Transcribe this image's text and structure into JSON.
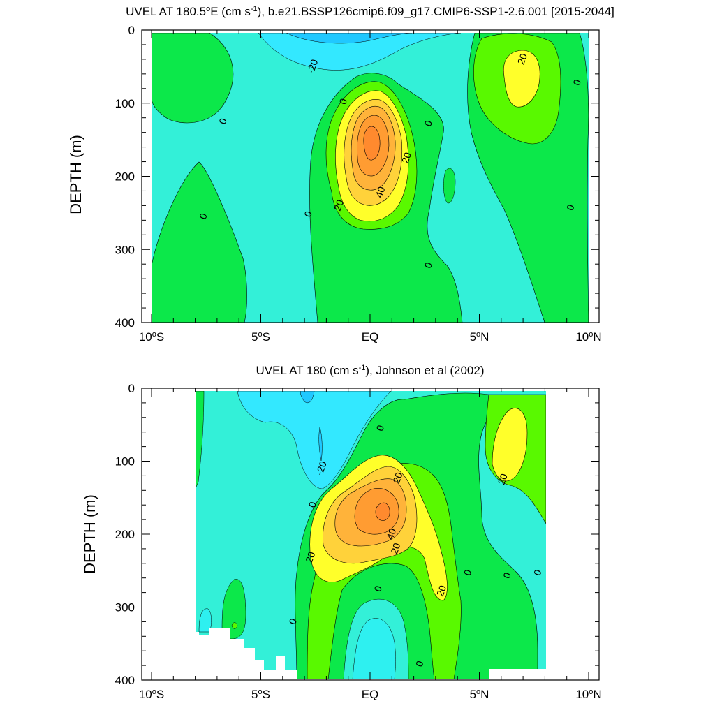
{
  "chart_data": [
    {
      "type": "heatmap",
      "title_main": "UVEL AT 180.5",
      "title_sup": "o",
      "title_rest": "E (cm s",
      "title_exp": "-1",
      "title_tail": "), b.e21.BSSP126cmip6.f09_g17.CMIP6-SSP1-2.6.001 [2015-2044]",
      "ylabel": "DEPTH (m)",
      "xlabel": "",
      "xlim": [
        -10,
        10
      ],
      "ylim": [
        400,
        0
      ],
      "x_ticks": [
        {
          "value": -10,
          "num": "10",
          "deg": "o",
          "hem": "S"
        },
        {
          "value": -5,
          "num": "5",
          "deg": "o",
          "hem": "S"
        },
        {
          "value": 0,
          "num": "EQ",
          "deg": "",
          "hem": ""
        },
        {
          "value": 5,
          "num": "5",
          "deg": "o",
          "hem": "N"
        },
        {
          "value": 10,
          "num": "10",
          "deg": "o",
          "hem": "N"
        }
      ],
      "y_ticks": [
        {
          "value": 0,
          "label": "0"
        },
        {
          "value": 100,
          "label": "100"
        },
        {
          "value": 200,
          "label": "200"
        },
        {
          "value": 300,
          "label": "300"
        },
        {
          "value": 400,
          "label": "400"
        }
      ],
      "data_extent": {
        "x": [
          -9.8,
          9.8
        ],
        "y": [
          5,
          400
        ]
      },
      "background_color": "#33f0d8",
      "contour_labels": [
        {
          "x": -2.6,
          "y": 50,
          "text": "-20"
        },
        {
          "x": -1.2,
          "y": 98,
          "text": "0"
        },
        {
          "x": -6.7,
          "y": 125,
          "text": "0"
        },
        {
          "x": 2.7,
          "y": 128,
          "text": "0"
        },
        {
          "x": 7.0,
          "y": 40,
          "text": "20"
        },
        {
          "x": 9.5,
          "y": 72,
          "text": "0"
        },
        {
          "x": 1.7,
          "y": 175,
          "text": "20"
        },
        {
          "x": 0.5,
          "y": 222,
          "text": "40"
        },
        {
          "x": -1.4,
          "y": 240,
          "text": "20"
        },
        {
          "x": -2.8,
          "y": 252,
          "text": "0"
        },
        {
          "x": -7.6,
          "y": 255,
          "text": "0"
        },
        {
          "x": 9.2,
          "y": 243,
          "text": "0"
        },
        {
          "x": 2.7,
          "y": 322,
          "text": "0"
        }
      ]
    },
    {
      "type": "heatmap",
      "title_main": "UVEL AT 180 (cm s",
      "title_exp": "-1",
      "title_tail": "), Johnson et al (2002)",
      "ylabel": "DEPTH (m)",
      "xlabel": "",
      "xlim": [
        -10,
        10
      ],
      "ylim": [
        400,
        0
      ],
      "x_ticks": [
        {
          "value": -10,
          "num": "10",
          "deg": "o",
          "hem": "S"
        },
        {
          "value": -5,
          "num": "5",
          "deg": "o",
          "hem": "S"
        },
        {
          "value": 0,
          "num": "EQ",
          "deg": "",
          "hem": ""
        },
        {
          "value": 5,
          "num": "5",
          "deg": "o",
          "hem": "N"
        },
        {
          "value": 10,
          "num": "10",
          "deg": "o",
          "hem": "N"
        }
      ],
      "y_ticks": [
        {
          "value": 0,
          "label": "0"
        },
        {
          "value": 100,
          "label": "100"
        },
        {
          "value": 200,
          "label": "200"
        },
        {
          "value": 300,
          "label": "300"
        },
        {
          "value": 400,
          "label": "400"
        }
      ],
      "data_extent": {
        "x": [
          -8,
          8
        ],
        "y": [
          5,
          400
        ]
      },
      "background_color": "#33f0d8",
      "contour_labels": [
        {
          "x": 0.5,
          "y": 55,
          "text": "0"
        },
        {
          "x": -2.2,
          "y": 110,
          "text": "-20"
        },
        {
          "x": 1.3,
          "y": 123,
          "text": "20"
        },
        {
          "x": -2.6,
          "y": 160,
          "text": "0"
        },
        {
          "x": 6.1,
          "y": 125,
          "text": "20"
        },
        {
          "x": 1.0,
          "y": 200,
          "text": "40"
        },
        {
          "x": 1.2,
          "y": 220,
          "text": "20"
        },
        {
          "x": -2.7,
          "y": 232,
          "text": "20"
        },
        {
          "x": 4.5,
          "y": 253,
          "text": "0"
        },
        {
          "x": 6.3,
          "y": 257,
          "text": "0"
        },
        {
          "x": 7.7,
          "y": 253,
          "text": "0"
        },
        {
          "x": 3.3,
          "y": 278,
          "text": "20"
        },
        {
          "x": 0.4,
          "y": 275,
          "text": "0"
        },
        {
          "x": -3.5,
          "y": 320,
          "text": "0"
        },
        {
          "x": 2.3,
          "y": 378,
          "text": "0"
        }
      ]
    }
  ]
}
